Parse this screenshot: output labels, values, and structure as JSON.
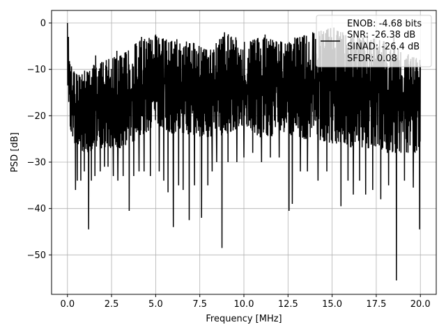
{
  "chart_data": {
    "type": "line",
    "xlabel": "Frequency [MHz]",
    "ylabel": "PSD [dB]",
    "xlim": [
      -0.9,
      20.9
    ],
    "ylim": [
      -58.5,
      2.7
    ],
    "x_ticks": [
      0.0,
      2.5,
      5.0,
      7.5,
      10.0,
      12.5,
      15.0,
      17.5,
      20.0
    ],
    "x_tick_labels": [
      "0.0",
      "2.5",
      "5.0",
      "7.5",
      "10.0",
      "12.5",
      "15.0",
      "17.5",
      "20.0"
    ],
    "y_ticks": [
      0,
      -10,
      -20,
      -30,
      -40,
      -50
    ],
    "y_tick_labels": [
      "0",
      "−10",
      "−20",
      "−30",
      "−40",
      "−50"
    ],
    "grid": true,
    "legend": {
      "placement": "top-right",
      "entries": [
        "ENOB: -4.68 bits",
        "SNR: -26.38 dB",
        "SINAD: -26.4 dB",
        "SFDR: 0.08"
      ]
    },
    "series": [
      {
        "color": "#000000",
        "x_range": [
          0,
          20
        ],
        "envelope_top": [
          [
            0.0,
            0
          ],
          [
            0.1,
            -8
          ],
          [
            0.3,
            -10
          ],
          [
            0.5,
            -11
          ],
          [
            1.0,
            -10
          ],
          [
            1.5,
            -9
          ],
          [
            2.0,
            -8
          ],
          [
            3.0,
            -7
          ],
          [
            4.0,
            -4
          ],
          [
            5.0,
            -2.5
          ],
          [
            6.0,
            -4
          ],
          [
            7.0,
            -4
          ],
          [
            8.0,
            -6
          ],
          [
            9.0,
            -2
          ],
          [
            10.0,
            -4
          ],
          [
            11.0,
            -3
          ],
          [
            12.0,
            -4
          ],
          [
            13.0,
            -3
          ],
          [
            14.0,
            -2
          ],
          [
            15.0,
            -1
          ],
          [
            16.0,
            -3
          ],
          [
            17.0,
            -3
          ],
          [
            18.0,
            -4
          ],
          [
            19.0,
            -6
          ],
          [
            20.0,
            -8
          ]
        ],
        "envelope_bottom": [
          [
            0.0,
            -13
          ],
          [
            0.1,
            -22
          ],
          [
            0.5,
            -27
          ],
          [
            1.0,
            -28
          ],
          [
            2.0,
            -27
          ],
          [
            3.0,
            -27
          ],
          [
            4.0,
            -25
          ],
          [
            5.0,
            -22
          ],
          [
            6.0,
            -24
          ],
          [
            7.0,
            -24
          ],
          [
            8.0,
            -25
          ],
          [
            9.0,
            -24
          ],
          [
            10.0,
            -22
          ],
          [
            11.0,
            -25
          ],
          [
            12.0,
            -24
          ],
          [
            13.0,
            -25
          ],
          [
            14.0,
            -25
          ],
          [
            15.0,
            -26
          ],
          [
            16.0,
            -27
          ],
          [
            17.0,
            -27
          ],
          [
            18.0,
            -28
          ],
          [
            19.0,
            -28
          ],
          [
            20.0,
            -28
          ]
        ],
        "dips": [
          [
            0.45,
            -36
          ],
          [
            0.55,
            -34
          ],
          [
            0.75,
            -34
          ],
          [
            0.95,
            -32
          ],
          [
            1.2,
            -44.5
          ],
          [
            1.35,
            -34
          ],
          [
            1.55,
            -33
          ],
          [
            1.85,
            -32
          ],
          [
            2.1,
            -31
          ],
          [
            2.3,
            -31
          ],
          [
            2.6,
            -33
          ],
          [
            2.85,
            -34
          ],
          [
            3.15,
            -33
          ],
          [
            3.5,
            -40.5
          ],
          [
            3.75,
            -33
          ],
          [
            4.05,
            -32
          ],
          [
            4.35,
            -32
          ],
          [
            4.7,
            -33
          ],
          [
            5.2,
            -32
          ],
          [
            5.45,
            -34
          ],
          [
            5.7,
            -36.5
          ],
          [
            6.0,
            -44
          ],
          [
            6.3,
            -35
          ],
          [
            6.55,
            -36
          ],
          [
            6.9,
            -42.5
          ],
          [
            7.2,
            -35
          ],
          [
            7.6,
            -42
          ],
          [
            7.95,
            -35
          ],
          [
            8.2,
            -32
          ],
          [
            8.45,
            -30
          ],
          [
            8.75,
            -48.5
          ],
          [
            9.1,
            -30
          ],
          [
            9.6,
            -30
          ],
          [
            10.0,
            -29
          ],
          [
            10.5,
            -28
          ],
          [
            11.0,
            -30
          ],
          [
            11.5,
            -29
          ],
          [
            12.0,
            -29
          ],
          [
            12.55,
            -40.5
          ],
          [
            12.75,
            -39
          ],
          [
            13.2,
            -32
          ],
          [
            13.6,
            -32
          ],
          [
            14.2,
            -34
          ],
          [
            14.7,
            -32
          ],
          [
            15.5,
            -39.5
          ],
          [
            15.9,
            -34
          ],
          [
            16.2,
            -37
          ],
          [
            16.55,
            -34
          ],
          [
            16.9,
            -37
          ],
          [
            17.3,
            -36
          ],
          [
            17.75,
            -38
          ],
          [
            18.2,
            -35
          ],
          [
            18.65,
            -55.5
          ],
          [
            19.1,
            -34
          ],
          [
            19.6,
            -35.5
          ],
          [
            19.95,
            -44.5
          ]
        ],
        "peaks": [
          [
            0.0,
            0
          ],
          [
            0.05,
            -3
          ],
          [
            1.6,
            -7
          ],
          [
            2.8,
            -6
          ],
          [
            4.2,
            -3
          ],
          [
            5.0,
            -2.5
          ],
          [
            6.2,
            -3.5
          ],
          [
            8.9,
            -2
          ],
          [
            11.2,
            -2.5
          ],
          [
            13.9,
            -2
          ],
          [
            15.1,
            -1
          ],
          [
            15.6,
            -2
          ],
          [
            17.0,
            -2.5
          ],
          [
            18.5,
            -3
          ]
        ],
        "seed": 7
      }
    ]
  }
}
